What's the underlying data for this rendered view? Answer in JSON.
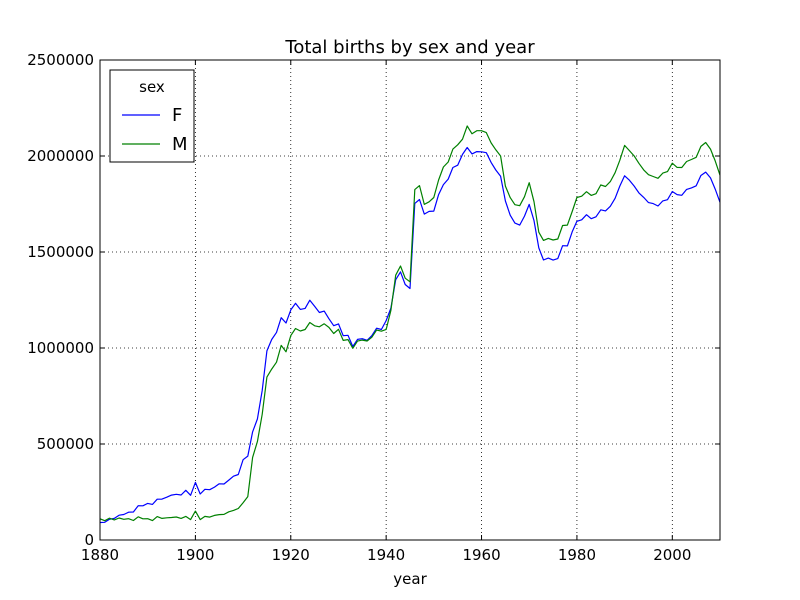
{
  "chart_data": {
    "type": "line",
    "title": "Total births by sex and year",
    "xlabel": "year",
    "ylabel": "",
    "xlim": [
      1880,
      2010
    ],
    "ylim": [
      0,
      2500000
    ],
    "grid": true,
    "legend": {
      "title": "sex",
      "placement": "top-left"
    },
    "x_ticks": [
      {
        "value": 1880,
        "label": "1880"
      },
      {
        "value": 1900,
        "label": "1900"
      },
      {
        "value": 1920,
        "label": "1920"
      },
      {
        "value": 1940,
        "label": "1940"
      },
      {
        "value": 1960,
        "label": "1960"
      },
      {
        "value": 1980,
        "label": "1980"
      },
      {
        "value": 2000,
        "label": "2000"
      }
    ],
    "y_ticks": [
      {
        "value": 0,
        "label": "0"
      },
      {
        "value": 500000,
        "label": "500000"
      },
      {
        "value": 1000000,
        "label": "1000000"
      },
      {
        "value": 1500000,
        "label": "1500000"
      },
      {
        "value": 2000000,
        "label": "2000000"
      },
      {
        "value": 2500000,
        "label": "2500000"
      }
    ],
    "x": [
      1880,
      1881,
      1882,
      1883,
      1884,
      1885,
      1886,
      1887,
      1888,
      1889,
      1890,
      1891,
      1892,
      1893,
      1894,
      1895,
      1896,
      1897,
      1898,
      1899,
      1900,
      1901,
      1902,
      1903,
      1904,
      1905,
      1906,
      1907,
      1908,
      1909,
      1910,
      1911,
      1912,
      1913,
      1914,
      1915,
      1916,
      1917,
      1918,
      1919,
      1920,
      1921,
      1922,
      1923,
      1924,
      1925,
      1926,
      1927,
      1928,
      1929,
      1930,
      1931,
      1932,
      1933,
      1934,
      1935,
      1936,
      1937,
      1938,
      1939,
      1940,
      1941,
      1942,
      1943,
      1944,
      1945,
      1946,
      1947,
      1948,
      1949,
      1950,
      1951,
      1952,
      1953,
      1954,
      1955,
      1956,
      1957,
      1958,
      1959,
      1960,
      1961,
      1962,
      1963,
      1964,
      1965,
      1966,
      1967,
      1968,
      1969,
      1970,
      1971,
      1972,
      1973,
      1974,
      1975,
      1976,
      1977,
      1978,
      1979,
      1980,
      1981,
      1982,
      1983,
      1984,
      1985,
      1986,
      1987,
      1988,
      1989,
      1990,
      1991,
      1992,
      1993,
      1994,
      1995,
      1996,
      1997,
      1998,
      1999,
      2000,
      2001,
      2002,
      2003,
      2004,
      2005,
      2006,
      2007,
      2008,
      2009,
      2010
    ],
    "series": [
      {
        "name": "F",
        "color": "#0000ff",
        "values": [
          90993,
          91955,
          107851,
          112322,
          129022,
          133055,
          144535,
          145982,
          178627,
          178366,
          190376,
          185482,
          212346,
          212906,
          222922,
          233630,
          237920,
          234202,
          258770,
          233023,
          299822,
          239351,
          264079,
          261976,
          275375,
          292627,
          291439,
          311927,
          332089,
          341399,
          418176,
          437209,
          563222,
          630416,
          778706,
          984873,
          1044248,
          1081195,
          1157585,
          1130179,
          1198230,
          1232845,
          1200795,
          1206239,
          1248820,
          1217264,
          1185075,
          1192267,
          1152854,
          1116262,
          1125523,
          1064016,
          1066327,
          1007728,
          1045033,
          1048450,
          1039924,
          1063950,
          1103196,
          1096368,
          1143386,
          1207948,
          1355898,
          1396425,
          1330720,
          1309925,
          1753181,
          1773254,
          1697432,
          1711442,
          1713259,
          1799211,
          1850845,
          1879918,
          1939929,
          1951937,
          2008164,
          2044160,
          2010884,
          2023063,
          2022093,
          2017316,
          1966457,
          1927054,
          1894216,
          1765434,
          1691868,
          1650764,
          1640271,
          1686947,
          1748046,
          1663411,
          1521564,
          1458139,
          1467994,
          1457699,
          1465377,
          1532973,
          1531912,
          1605106,
          1659933,
          1667463,
          1694101,
          1673516,
          1683218,
          1719747,
          1714025,
          1738117,
          1779587,
          1843157,
          1896920,
          1873906,
          1843012,
          1807772,
          1784584,
          1757051,
          1752237,
          1739722,
          1765888,
          1772137,
          1814922,
          1799142,
          1795230,
          1826054,
          1834008,
          1844711,
          1898256,
          1916051,
          1886109,
          1827643,
          1759010
        ]
      },
      {
        "name": "M",
        "color": "#008000",
        "values": [
          110491,
          100743,
          113686,
          104627,
          114442,
          107799,
          110784,
          101412,
          120851,
          110580,
          111025,
          101193,
          122037,
          112318,
          115772,
          117398,
          119570,
          112758,
          122695,
          106212,
          150499,
          106470,
          122660,
          119233,
          128129,
          132319,
          133159,
          146833,
          154339,
          163983,
          194198,
          225936,
          429982,
          512482,
          654746,
          848647,
          890142,
          925922,
          1013720,
          980215,
          1064468,
          1101374,
          1088380,
          1096227,
          1132671,
          1115798,
          1110440,
          1126259,
          1107113,
          1075338,
          1097207,
          1039788,
          1043740,
          998640,
          1036004,
          1040955,
          1036580,
          1055680,
          1093548,
          1087710,
          1096656,
          1196327,
          1379047,
          1427330,
          1363718,
          1344935,
          1824958,
          1845574,
          1747895,
          1761678,
          1784022,
          1875007,
          1942895,
          1968519,
          2035779,
          2058221,
          2087418,
          2156214,
          2115419,
          2131694,
          2131837,
          2121736,
          2067994,
          2032045,
          2000221,
          1843219,
          1783127,
          1746271,
          1741059,
          1787813,
          1861022,
          1762143,
          1602983,
          1560463,
          1570825,
          1562337,
          1567934,
          1637843,
          1640109,
          1710731,
          1783874,
          1790597,
          1813997,
          1795002,
          1803657,
          1849426,
          1841039,
          1866432,
          1912864,
          1977745,
          2055210,
          2028183,
          2000218,
          1962160,
          1927591,
          1902740,
          1893121,
          1884108,
          1910924,
          1918967,
          1962406,
          1940509,
          1939927,
          1971104,
          1982022,
          1993001,
          2050180,
          2070089,
          2036174,
          1974286,
          1900000
        ]
      }
    ]
  }
}
